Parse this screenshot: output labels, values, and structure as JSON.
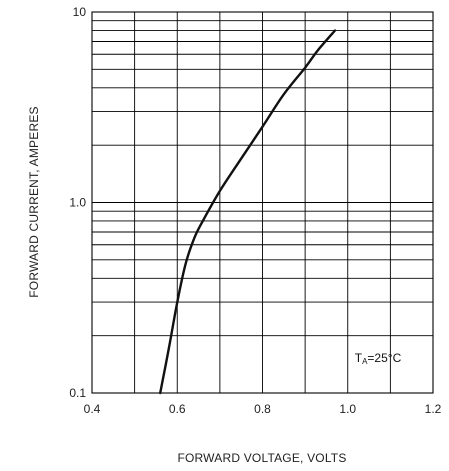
{
  "chart_data": {
    "type": "line",
    "title": "",
    "xlabel": "FORWARD VOLTAGE, VOLTS",
    "ylabel": "FORWARD CURRENT, AMPERES",
    "x_scale": "linear",
    "y_scale": "log",
    "xlim": [
      0.4,
      1.2
    ],
    "ylim": [
      0.1,
      10
    ],
    "x_ticks": [
      0.4,
      0.6,
      0.8,
      1.0,
      1.2
    ],
    "x_tick_labels": [
      "0.4",
      "0.6",
      "0.8",
      "1.0",
      "1.2"
    ],
    "y_ticks": [
      0.1,
      1.0,
      10
    ],
    "y_tick_labels": [
      "0.1",
      "1.0",
      "10"
    ],
    "grid": true,
    "annotation": {
      "prefix": "T",
      "subscript": "A",
      "value": "=25",
      "unit": "°C"
    },
    "series": [
      {
        "x": [
          0.56,
          0.58,
          0.6,
          0.62,
          0.64,
          0.66,
          0.7,
          0.75,
          0.8,
          0.85,
          0.9,
          0.93,
          0.97
        ],
        "y": [
          0.1,
          0.17,
          0.3,
          0.48,
          0.65,
          0.8,
          1.15,
          1.7,
          2.5,
          3.7,
          5.1,
          6.3,
          8.0
        ]
      }
    ],
    "line_color": "#111111"
  }
}
